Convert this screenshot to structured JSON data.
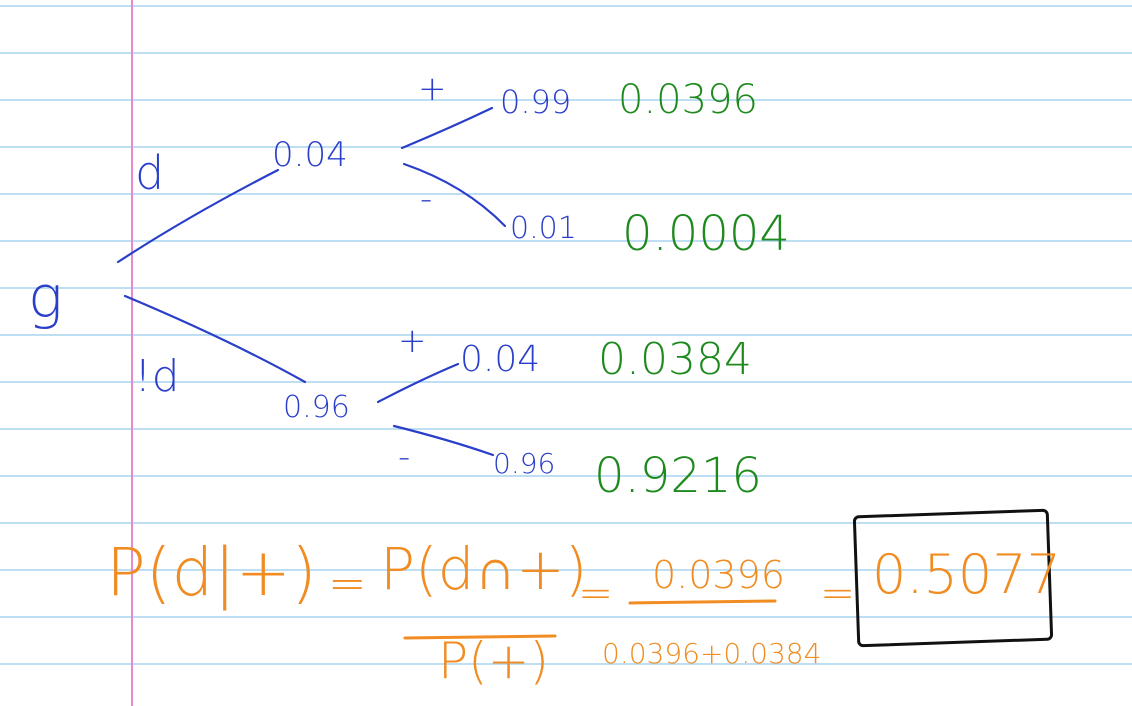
{
  "colors": {
    "rule_line": "#a8d4f0",
    "margin_line": "#e58ad0",
    "tree_ink": "#2a3fc9",
    "joint_ink": "#1e8a1e",
    "formula_ink": "#f08c22",
    "box_ink": "#111111",
    "paper": "#ffffff"
  },
  "tree": {
    "root": "g",
    "branch_d": "d",
    "branch_not_d": "!d",
    "p_d": "0.04",
    "p_not_d": "0.96",
    "plus_top": "+",
    "minus_top": "-",
    "plus_bottom": "+",
    "minus_bottom": "-",
    "p_pos_given_d": "0.99",
    "p_neg_given_d": "0.01",
    "p_pos_given_not_d": "0.04",
    "p_neg_given_not_d": "0.96"
  },
  "joint": {
    "d_pos": "0.0396",
    "d_neg": "0.0004",
    "not_d_pos": "0.0384",
    "not_d_neg": "0.9216"
  },
  "formula": {
    "lhs": "P(d|+)",
    "eq1": "=",
    "numerator": "P(d∩+)",
    "denominator": "P(+)",
    "eq2": "=",
    "value_numerator": "0.0396",
    "value_denominator": "0.0396+0.0384",
    "eq3": "=",
    "answer": "0.5077"
  }
}
